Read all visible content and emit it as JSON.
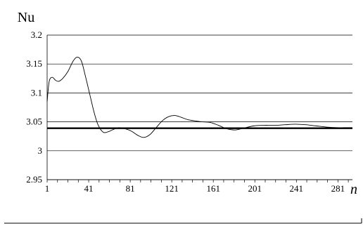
{
  "chart_data": {
    "type": "line",
    "title": "",
    "ylabel": "Nu",
    "xlabel": "n",
    "xlim": [
      1,
      295
    ],
    "ylim": [
      2.95,
      3.2
    ],
    "yticks": [
      "2.95",
      "3",
      "3.05",
      "3.1",
      "3.15",
      "3.2"
    ],
    "xticks": [
      "1",
      "41",
      "81",
      "121",
      "161",
      "201",
      "241",
      "281"
    ],
    "grid": "horizontal",
    "series": [
      {
        "style": "thin",
        "x": [
          1,
          3,
          6,
          9,
          12,
          16,
          21,
          26,
          30,
          34,
          38,
          42,
          46,
          50,
          55,
          60,
          65,
          70,
          76,
          82,
          88,
          94,
          100,
          106,
          112,
          118,
          124,
          130,
          136,
          142,
          150,
          158,
          166,
          174,
          182,
          190,
          200,
          210,
          220,
          230,
          240,
          250,
          260,
          270,
          280,
          290,
          295
        ],
        "y": [
          3.085,
          3.12,
          3.127,
          3.122,
          3.12,
          3.125,
          3.137,
          3.155,
          3.162,
          3.155,
          3.128,
          3.098,
          3.068,
          3.045,
          3.032,
          3.033,
          3.037,
          3.04,
          3.038,
          3.034,
          3.027,
          3.023,
          3.028,
          3.04,
          3.052,
          3.059,
          3.061,
          3.058,
          3.054,
          3.052,
          3.05,
          3.049,
          3.044,
          3.038,
          3.036,
          3.039,
          3.043,
          3.044,
          3.044,
          3.045,
          3.046,
          3.045,
          3.043,
          3.041,
          3.04,
          3.04,
          3.04
        ]
      },
      {
        "style": "thick-reference",
        "x": [
          1,
          295
        ],
        "y": [
          3.039,
          3.039
        ]
      }
    ]
  }
}
